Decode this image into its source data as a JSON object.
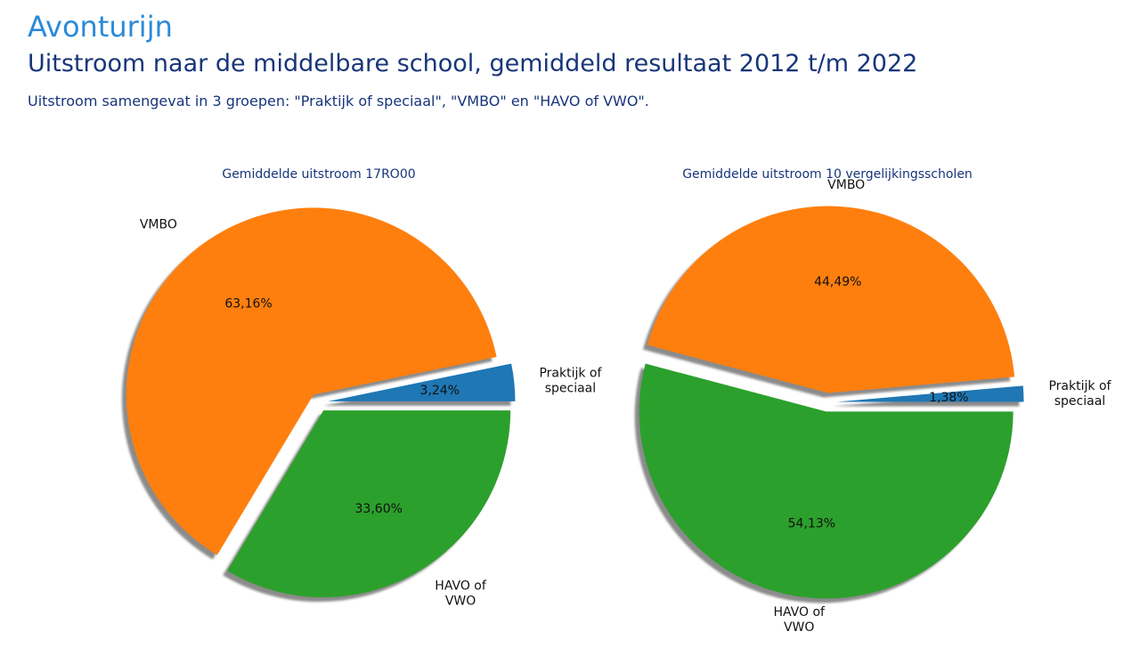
{
  "header": {
    "school_name": "Avonturijn",
    "title": "Uitstroom naar de middelbare school, gemiddeld resultaat 2012 t/m 2022",
    "subtitle": "Uitstroom samengevat in 3 groepen: \"Praktijk of speciaal\", \"VMBO\" en \"HAVO of VWO\"."
  },
  "chart_data": [
    {
      "type": "pie",
      "title": "Gemiddelde uitstroom 17RO00",
      "slices": [
        {
          "label": "Praktijk of speciaal",
          "label_lines": [
            "Praktijk of",
            "speciaal"
          ],
          "value": 3.24,
          "value_label": "3,24%",
          "color": "#1f77b4",
          "exploded": true
        },
        {
          "label": "VMBO",
          "label_lines": [
            "VMBO"
          ],
          "value": 63.16,
          "value_label": "63,16%",
          "color": "#ff7f0e",
          "exploded": true
        },
        {
          "label": "HAVO of VWO",
          "label_lines": [
            "HAVO of",
            "VWO"
          ],
          "value": 33.6,
          "value_label": "33,60%",
          "color": "#2ca02c",
          "exploded": true
        }
      ],
      "start_angle_deg": 0,
      "direction": "counterclockwise",
      "shadow": true
    },
    {
      "type": "pie",
      "title": "Gemiddelde uitstroom 10 vergelijkingsscholen",
      "slices": [
        {
          "label": "Praktijk of speciaal",
          "label_lines": [
            "Praktijk of",
            "speciaal"
          ],
          "value": 1.38,
          "value_label": "1,38%",
          "color": "#1f77b4",
          "exploded": true
        },
        {
          "label": "VMBO",
          "label_lines": [
            "VMBO"
          ],
          "value": 44.49,
          "value_label": "44,49%",
          "color": "#ff7f0e",
          "exploded": true
        },
        {
          "label": "HAVO of VWO",
          "label_lines": [
            "HAVO of",
            "VWO"
          ],
          "value": 54.13,
          "value_label": "54,13%",
          "color": "#2ca02c",
          "exploded": true
        }
      ],
      "start_angle_deg": 0,
      "direction": "counterclockwise",
      "shadow": true
    }
  ]
}
